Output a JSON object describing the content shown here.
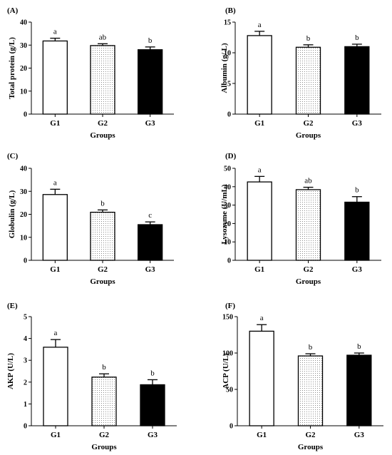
{
  "patterns": [
    "none",
    "dots",
    "solid"
  ],
  "chart_data": [
    {
      "type": "bar",
      "panel": "(A)",
      "categories": [
        "G1",
        "G2",
        "G3"
      ],
      "values": [
        31.8,
        29.8,
        28.0
      ],
      "errors": [
        1.2,
        0.8,
        1.2
      ],
      "sig": [
        "a",
        "ab",
        "b"
      ],
      "ylabel": "Total protein (g/L)",
      "xlabel": "Groups",
      "ylim": [
        0,
        40
      ],
      "yticks": [
        0,
        10,
        20,
        30,
        40
      ],
      "ytick_labels": [
        "0",
        "10",
        "20",
        "30",
        "40"
      ],
      "grid": false
    },
    {
      "type": "bar",
      "panel": "(B)",
      "categories": [
        "G1",
        "G2",
        "G3"
      ],
      "values": [
        12.8,
        10.9,
        11.0
      ],
      "errors": [
        0.7,
        0.4,
        0.4
      ],
      "sig": [
        "a",
        "b",
        "b"
      ],
      "ylabel": "Albumin (g/ L)",
      "xlabel": "Groups",
      "ylim": [
        0,
        15
      ],
      "yticks": [
        0,
        5,
        10,
        15
      ],
      "ytick_labels": [
        "0",
        "5",
        "10",
        "15"
      ],
      "grid": false
    },
    {
      "type": "bar",
      "panel": "(C)",
      "categories": [
        "G1",
        "G2",
        "G3"
      ],
      "values": [
        28.6,
        20.9,
        15.5
      ],
      "errors": [
        2.3,
        1.0,
        1.2
      ],
      "sig": [
        "a",
        "b",
        "c"
      ],
      "ylabel": "Globulin (g/L)",
      "xlabel": "Groups",
      "ylim": [
        0,
        40
      ],
      "yticks": [
        0,
        10,
        20,
        30,
        40
      ],
      "ytick_labels": [
        "0",
        "10",
        "20",
        "30",
        "40"
      ],
      "grid": false
    },
    {
      "type": "bar",
      "panel": "(D)",
      "categories": [
        "G1",
        "G2",
        "G3"
      ],
      "values": [
        42.6,
        38.4,
        31.6
      ],
      "errors": [
        3.0,
        1.3,
        3.0
      ],
      "sig": [
        "a",
        "ab",
        "b"
      ],
      "ylabel": "Lysozyme (U/mL)",
      "xlabel": "Groups",
      "ylim": [
        0,
        50
      ],
      "yticks": [
        0,
        10,
        20,
        30,
        40,
        50
      ],
      "ytick_labels": [
        "0",
        "10",
        "20",
        "30",
        "40",
        "50"
      ],
      "grid": false
    },
    {
      "type": "bar",
      "panel": "(E)",
      "categories": [
        "G1",
        "G2",
        "G3"
      ],
      "values": [
        3.6,
        2.23,
        1.88
      ],
      "errors": [
        0.35,
        0.15,
        0.23
      ],
      "sig": [
        "a",
        "b",
        "b"
      ],
      "ylabel": "AKP (U/L)",
      "xlabel": "Groups",
      "ylim": [
        0,
        5
      ],
      "yticks": [
        0,
        1,
        2,
        3,
        4,
        5
      ],
      "ytick_labels": [
        "0",
        "1",
        "2",
        "3",
        "4",
        "5"
      ],
      "grid": false
    },
    {
      "type": "bar",
      "panel": "(F)",
      "categories": [
        "G1",
        "G2",
        "G3"
      ],
      "values": [
        130,
        96,
        97
      ],
      "errors": [
        9,
        3,
        3
      ],
      "sig": [
        "a",
        "b",
        "b"
      ],
      "ylabel": "ACP (U/L)",
      "xlabel": "Groups",
      "ylim": [
        0,
        150
      ],
      "yticks": [
        0,
        50,
        100,
        150
      ],
      "ytick_labels": [
        "0",
        "50",
        "100",
        "150"
      ],
      "grid": false
    }
  ]
}
